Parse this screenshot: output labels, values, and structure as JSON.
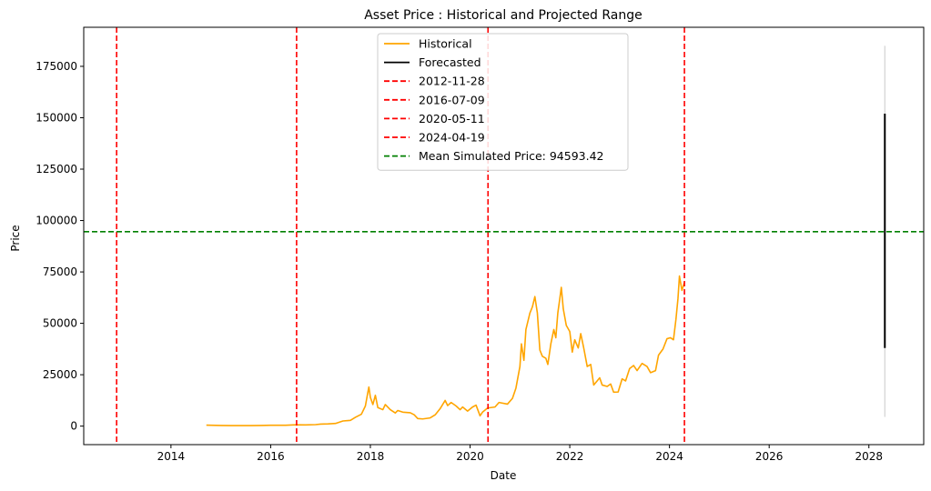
{
  "chart_data": {
    "type": "line",
    "title": "Asset Price : Historical and Projected Range",
    "xlabel": "Date",
    "ylabel": "Price",
    "xlim": [
      2012.25,
      2029.1
    ],
    "ylim": [
      -9000,
      194000
    ],
    "x_ticks": [
      2014,
      2016,
      2018,
      2020,
      2022,
      2024,
      2026,
      2028
    ],
    "x_tick_labels": [
      "2014",
      "2016",
      "2018",
      "2020",
      "2022",
      "2024",
      "2026",
      "2028"
    ],
    "y_ticks": [
      0,
      25000,
      50000,
      75000,
      100000,
      125000,
      150000,
      175000
    ],
    "y_tick_labels": [
      "0",
      "25000",
      "50000",
      "75000",
      "100000",
      "125000",
      "150000",
      "175000"
    ],
    "grid": false,
    "legend_position": "top-center",
    "colors": {
      "historical": "#ffa500",
      "forecast": "#000000",
      "halving": "#ff0000",
      "mean": "#008000",
      "range": "#d3d3d3"
    },
    "series": [
      {
        "name": "Historical",
        "legend_label": "Historical",
        "color": "#ffa500",
        "points": [
          [
            2014.71,
            460
          ],
          [
            2014.9,
            380
          ],
          [
            2015.0,
            320
          ],
          [
            2015.2,
            260
          ],
          [
            2015.4,
            240
          ],
          [
            2015.6,
            260
          ],
          [
            2015.8,
            330
          ],
          [
            2016.0,
            420
          ],
          [
            2016.3,
            420
          ],
          [
            2016.5,
            650
          ],
          [
            2016.7,
            600
          ],
          [
            2016.9,
            730
          ],
          [
            2017.0,
            990
          ],
          [
            2017.15,
            1100
          ],
          [
            2017.3,
            1300
          ],
          [
            2017.45,
            2500
          ],
          [
            2017.6,
            2800
          ],
          [
            2017.7,
            4300
          ],
          [
            2017.82,
            5800
          ],
          [
            2017.9,
            9800
          ],
          [
            2017.95,
            16500
          ],
          [
            2017.97,
            19000
          ],
          [
            2018.0,
            14000
          ],
          [
            2018.05,
            10500
          ],
          [
            2018.1,
            15000
          ],
          [
            2018.15,
            9000
          ],
          [
            2018.25,
            8000
          ],
          [
            2018.3,
            10500
          ],
          [
            2018.4,
            8000
          ],
          [
            2018.5,
            6400
          ],
          [
            2018.55,
            7600
          ],
          [
            2018.65,
            6800
          ],
          [
            2018.8,
            6500
          ],
          [
            2018.88,
            5500
          ],
          [
            2018.95,
            3700
          ],
          [
            2019.05,
            3500
          ],
          [
            2019.2,
            4000
          ],
          [
            2019.3,
            5500
          ],
          [
            2019.4,
            8500
          ],
          [
            2019.5,
            12500
          ],
          [
            2019.55,
            10000
          ],
          [
            2019.62,
            11500
          ],
          [
            2019.72,
            9800
          ],
          [
            2019.8,
            8000
          ],
          [
            2019.85,
            9300
          ],
          [
            2019.95,
            7300
          ],
          [
            2020.05,
            9300
          ],
          [
            2020.12,
            10200
          ],
          [
            2020.2,
            5000
          ],
          [
            2020.25,
            6800
          ],
          [
            2020.35,
            8800
          ],
          [
            2020.5,
            9300
          ],
          [
            2020.58,
            11500
          ],
          [
            2020.75,
            10700
          ],
          [
            2020.85,
            13500
          ],
          [
            2020.92,
            18500
          ],
          [
            2021.0,
            29000
          ],
          [
            2021.03,
            40000
          ],
          [
            2021.08,
            32000
          ],
          [
            2021.12,
            47000
          ],
          [
            2021.2,
            55000
          ],
          [
            2021.25,
            58000
          ],
          [
            2021.3,
            63000
          ],
          [
            2021.35,
            55000
          ],
          [
            2021.4,
            37000
          ],
          [
            2021.45,
            34000
          ],
          [
            2021.52,
            33000
          ],
          [
            2021.56,
            30000
          ],
          [
            2021.62,
            40000
          ],
          [
            2021.68,
            47000
          ],
          [
            2021.72,
            43000
          ],
          [
            2021.76,
            55000
          ],
          [
            2021.8,
            62000
          ],
          [
            2021.83,
            67500
          ],
          [
            2021.87,
            57000
          ],
          [
            2021.93,
            49000
          ],
          [
            2022.0,
            46000
          ],
          [
            2022.05,
            36000
          ],
          [
            2022.1,
            42000
          ],
          [
            2022.17,
            38000
          ],
          [
            2022.22,
            45000
          ],
          [
            2022.28,
            38000
          ],
          [
            2022.35,
            29000
          ],
          [
            2022.42,
            30000
          ],
          [
            2022.48,
            20000
          ],
          [
            2022.55,
            22000
          ],
          [
            2022.6,
            23500
          ],
          [
            2022.65,
            20000
          ],
          [
            2022.75,
            19300
          ],
          [
            2022.82,
            20500
          ],
          [
            2022.88,
            16500
          ],
          [
            2022.97,
            16600
          ],
          [
            2023.05,
            23000
          ],
          [
            2023.12,
            22000
          ],
          [
            2023.2,
            28000
          ],
          [
            2023.28,
            29500
          ],
          [
            2023.35,
            27000
          ],
          [
            2023.45,
            30500
          ],
          [
            2023.55,
            29000
          ],
          [
            2023.62,
            26000
          ],
          [
            2023.72,
            27000
          ],
          [
            2023.78,
            34500
          ],
          [
            2023.87,
            37500
          ],
          [
            2023.95,
            42500
          ],
          [
            2024.02,
            43000
          ],
          [
            2024.08,
            42000
          ],
          [
            2024.13,
            52000
          ],
          [
            2024.17,
            62000
          ],
          [
            2024.2,
            73000
          ],
          [
            2024.25,
            66000
          ],
          [
            2024.3,
            70000
          ]
        ]
      },
      {
        "name": "Forecasted",
        "legend_label": "Forecasted",
        "color": "#000000",
        "x": 2028.32,
        "low": 38000,
        "high": 152000
      }
    ],
    "forecast_full_range": {
      "x": 2028.32,
      "low": 4500,
      "high": 185000,
      "color": "#d3d3d3"
    },
    "vlines": [
      {
        "legend_label": "2012-11-28",
        "x": 2012.91,
        "color": "#ff0000",
        "style": "dashed"
      },
      {
        "legend_label": "2016-07-09",
        "x": 2016.52,
        "color": "#ff0000",
        "style": "dashed"
      },
      {
        "legend_label": "2020-05-11",
        "x": 2020.36,
        "color": "#ff0000",
        "style": "dashed"
      },
      {
        "legend_label": "2024-04-19",
        "x": 2024.3,
        "color": "#ff0000",
        "style": "dashed"
      }
    ],
    "hline": {
      "legend_label": "Mean Simulated Price: 94593.42",
      "y": 94593.42,
      "color": "#008000",
      "style": "dashed"
    }
  }
}
